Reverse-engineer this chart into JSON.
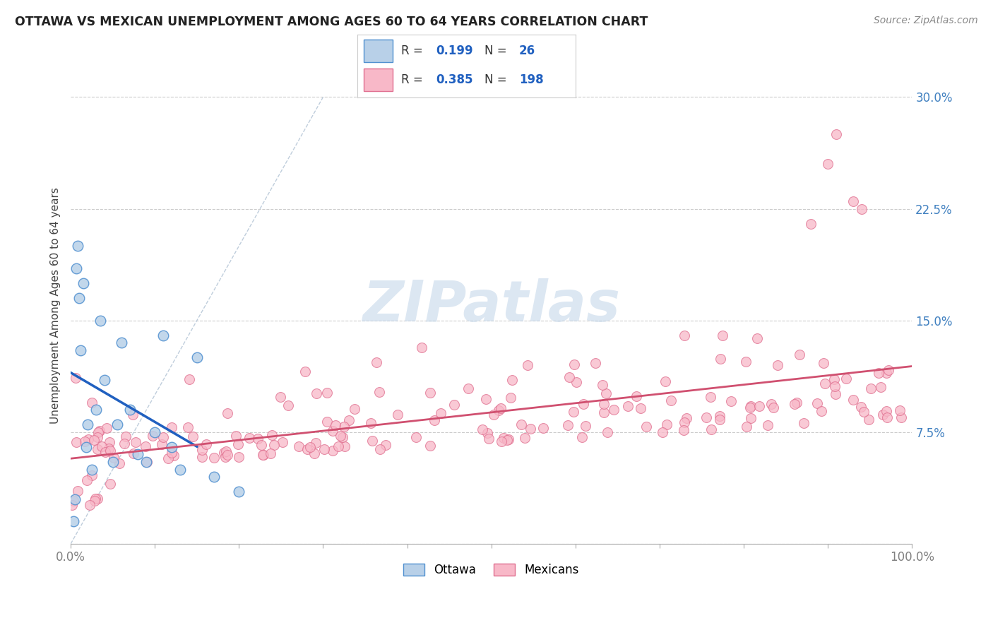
{
  "title": "OTTAWA VS MEXICAN UNEMPLOYMENT AMONG AGES 60 TO 64 YEARS CORRELATION CHART",
  "source": "Source: ZipAtlas.com",
  "ylabel": "Unemployment Among Ages 60 to 64 years",
  "xlim": [
    0,
    100
  ],
  "ylim": [
    0,
    32
  ],
  "xtick_positions": [
    0,
    10,
    20,
    30,
    40,
    50,
    60,
    70,
    80,
    90,
    100
  ],
  "xticklabels": [
    "0.0%",
    "",
    "",
    "",
    "",
    "",
    "",
    "",
    "",
    "",
    "100.0%"
  ],
  "ytick_positions": [
    0,
    7.5,
    15.0,
    22.5,
    30.0
  ],
  "ytick_labels": [
    "",
    "7.5%",
    "15.0%",
    "22.5%",
    "30.0%"
  ],
  "ottawa_R": 0.199,
  "ottawa_N": 26,
  "mexican_R": 0.385,
  "mexican_N": 198,
  "ottawa_fill_color": "#b8d0e8",
  "mexican_fill_color": "#f8b8c8",
  "ottawa_edge_color": "#5090d0",
  "mexican_edge_color": "#e07090",
  "ottawa_line_color": "#2060c0",
  "mexican_line_color": "#d05070",
  "diagonal_color": "#b8c8d8",
  "watermark": "ZIPatlas",
  "watermark_color": "#c0d4e8",
  "ytick_label_color": "#4080c0",
  "xtick_label_color": "#808080",
  "legend_text_color": "#333333",
  "legend_value_color": "#2060c0",
  "title_color": "#222222",
  "source_color": "#888888",
  "ylabel_color": "#444444"
}
